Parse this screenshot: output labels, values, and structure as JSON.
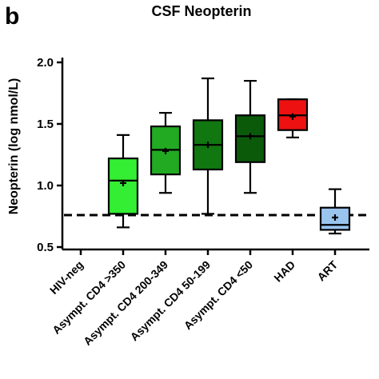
{
  "panel_letter": "b",
  "chart_data": {
    "type": "box",
    "title": "CSF Neopterin",
    "ylabel": "Neopterin (log nmol/L)",
    "xlabel": "",
    "ylim": [
      0.5,
      2.1
    ],
    "yticks": [
      "0.5",
      "1.0",
      "1.5",
      "2.0"
    ],
    "ytick_values": [
      0.5,
      1.0,
      1.5,
      2.0
    ],
    "reference_line": 0.76,
    "categories": [
      "HIV-neg",
      "Asympt. CD4 >350",
      "Asympt. CD4 200-349",
      "Asympt. CD4 50-199",
      "Asympt. CD4 <50",
      "HAD",
      "ART"
    ],
    "boxes": [
      null,
      {
        "min": 0.66,
        "q1": 0.77,
        "median": 1.04,
        "q3": 1.22,
        "max": 1.41,
        "mean": 1.02,
        "color": "#33ee33"
      },
      {
        "min": 0.94,
        "q1": 1.09,
        "median": 1.29,
        "q3": 1.48,
        "max": 1.59,
        "mean": 1.28,
        "color": "#22aa22"
      },
      {
        "min": 0.77,
        "q1": 1.13,
        "median": 1.33,
        "q3": 1.53,
        "max": 1.87,
        "mean": 1.33,
        "color": "#117711"
      },
      {
        "min": 0.94,
        "q1": 1.19,
        "median": 1.4,
        "q3": 1.57,
        "max": 1.85,
        "mean": 1.4,
        "color": "#0a5a0a"
      },
      {
        "min": 1.39,
        "q1": 1.45,
        "median": 1.57,
        "q3": 1.7,
        "max": 1.7,
        "mean": 1.56,
        "color": "#ee1111"
      },
      {
        "min": 0.61,
        "q1": 0.64,
        "median": 0.68,
        "q3": 0.82,
        "max": 0.97,
        "mean": 0.74,
        "color": "#99c4ee"
      }
    ]
  }
}
